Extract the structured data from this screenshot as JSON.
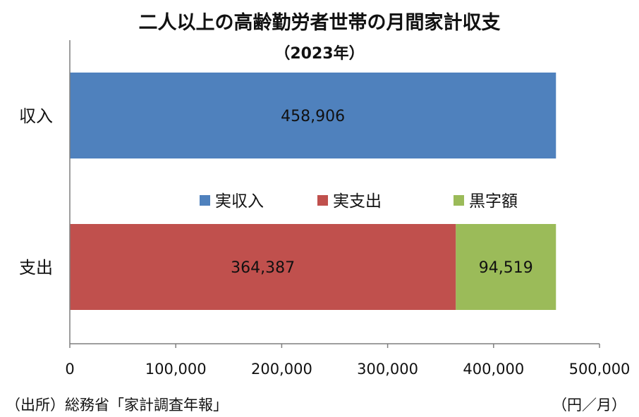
{
  "chart_data": {
    "type": "bar",
    "orientation": "horizontal",
    "stacked": true,
    "title": "二人以上の高齢勤労者世帯の月間家計収支",
    "subtitle": "（2023年）",
    "categories": [
      "収入",
      "支出"
    ],
    "series": [
      {
        "name": "実収入",
        "color": "#4f81bd",
        "values": [
          458906,
          0
        ],
        "labels": [
          "458,906",
          ""
        ]
      },
      {
        "name": "実支出",
        "color": "#c0504d",
        "values": [
          0,
          364387
        ],
        "labels": [
          "",
          "364,387"
        ]
      },
      {
        "name": "黒字額",
        "color": "#9bbb59",
        "values": [
          0,
          94519
        ],
        "labels": [
          "",
          "94,519"
        ]
      }
    ],
    "xlim": [
      0,
      500000
    ],
    "xticks": [
      0,
      100000,
      200000,
      300000,
      400000,
      500000
    ],
    "xtick_labels": [
      "0",
      "100,000",
      "200,000",
      "300,000",
      "400,000",
      "500,000"
    ],
    "grid": false,
    "legend": "between-bars"
  },
  "footer": {
    "source": "（出所）総務省「家計調査年報」",
    "unit": "（円／月）"
  }
}
